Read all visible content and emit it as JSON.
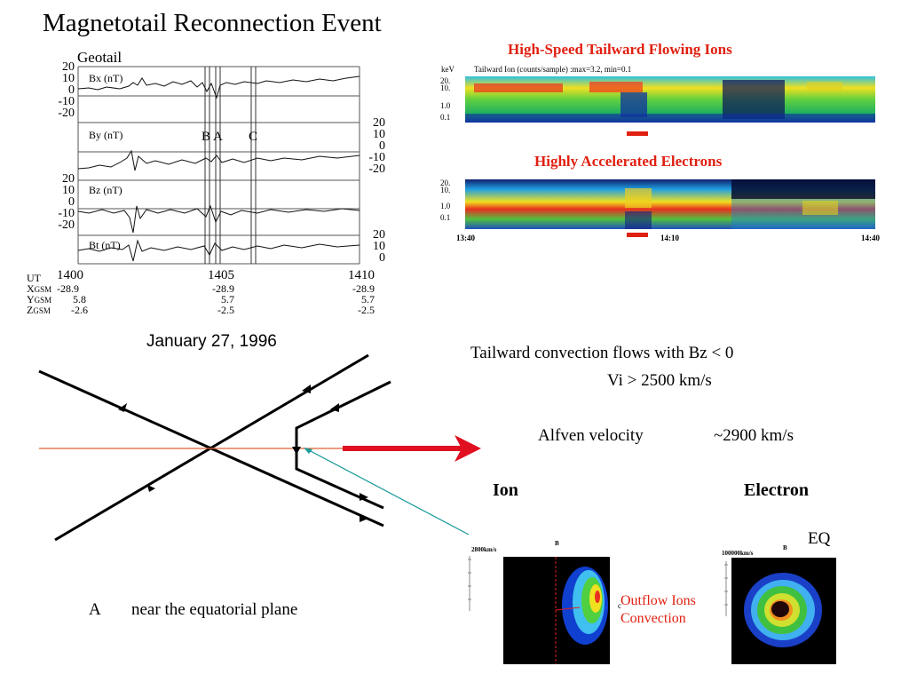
{
  "title": "Magnetotail Reconnection Event",
  "magnetogram": {
    "spacecraft": "Geotail",
    "panels": [
      "Bx (nT)",
      "By (nT)",
      "Bz (nT)",
      "Bt (nT)"
    ],
    "left_ticks_bx": [
      "20",
      "10",
      "0",
      "-10",
      "-20"
    ],
    "right_ticks_by": [
      "20",
      "10",
      "0",
      "-10",
      "-20"
    ],
    "left_ticks_bz": [
      "20",
      "10",
      "0",
      "-10",
      "-20"
    ],
    "right_ticks_bt": [
      "20",
      "10",
      "0"
    ],
    "markers": [
      "B",
      "A",
      "C"
    ],
    "ephemeris": {
      "labels": [
        "UT",
        "X",
        "Y",
        "Z"
      ],
      "subscript": "GSM",
      "columns": [
        {
          "ut": "1400",
          "x": "-28.9",
          "y": "5.8",
          "z": "-2.6"
        },
        {
          "ut": "1405",
          "x": "-28.9",
          "y": "5.7",
          "z": "-2.5"
        },
        {
          "ut": "1410",
          "x": "-28.9",
          "y": "5.7",
          "z": "-2.5"
        }
      ]
    },
    "date": "January 27, 1996"
  },
  "spectrogram_ions": {
    "heading": "High-Speed Tailward Flowing Ions",
    "unit": "keV",
    "caption": "Tailward Ion (counts/sample) :max=3.2, min=0.1",
    "y_ticks": [
      "20.",
      "10.",
      "1.0",
      "0.1"
    ]
  },
  "spectrogram_electrons": {
    "heading": "Highly Accelerated Electrons",
    "y_ticks": [
      "20.",
      "10.",
      "1.0",
      "0.1"
    ],
    "x_ticks": [
      "13:40",
      "14:10",
      "14:40"
    ]
  },
  "colors": {
    "heading_red": "#e02010",
    "arrow_red": "#e01020",
    "equator_line": "#e06030",
    "pointer_teal": "#1a9a9a"
  },
  "diagram_label": {
    "point": "A",
    "description": "near the equatorial plane"
  },
  "text_block": {
    "line1": "Tailward convection flows with Bz < 0",
    "line2": "Vi  > 2500 km/s",
    "line3_label": "Alfven velocity",
    "line3_value": "~2900 km/s"
  },
  "distributions": {
    "ion": {
      "title": "Ion",
      "scale": "2800km/s",
      "axis_label": "B"
    },
    "electron": {
      "title": "Electron",
      "scale": "100000km/s",
      "axis_label": "B",
      "region": "EQ"
    },
    "annotation_line1": "Outflow Ions",
    "annotation_line2": "Convection",
    "annotation_mark": "c"
  }
}
